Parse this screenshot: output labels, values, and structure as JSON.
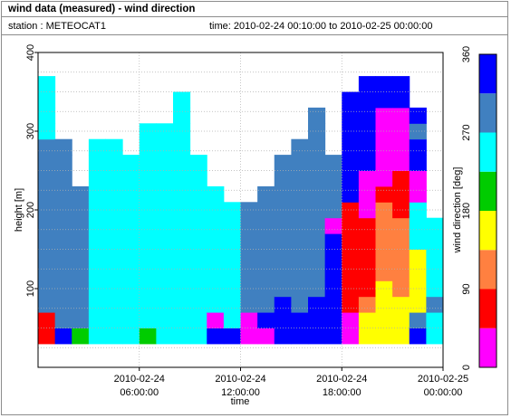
{
  "header": {
    "title": "wind data (measured) - wind direction",
    "station": "station : METEOCAT1",
    "time_range": "time: 2010-02-24 00:10:00 to 2010-02-25 00:00:00"
  },
  "chart_data": {
    "type": "heatmap",
    "title": "wind data (measured) - wind direction",
    "xlabel": "time",
    "ylabel": "height [m]",
    "colorbar_label": "wind direction [deg]",
    "xlim_hours": [
      0,
      24
    ],
    "ylim": [
      0,
      400
    ],
    "x_ticks": [
      {
        "hour": 6,
        "line1": "2010-02-24",
        "line2": "06:00:00"
      },
      {
        "hour": 12,
        "line1": "2010-02-24",
        "line2": "12:00:00"
      },
      {
        "hour": 18,
        "line1": "2010-02-24",
        "line2": "18:00:00"
      },
      {
        "hour": 24,
        "line1": "2010-02-25",
        "line2": "00:00:00"
      }
    ],
    "y_ticks": [
      100,
      200,
      300,
      400
    ],
    "colorbar_ticks": [
      0,
      90,
      180,
      270,
      360
    ],
    "colorbar_classes": [
      {
        "from": 0,
        "to": 45,
        "color": "#ff00ff"
      },
      {
        "from": 45,
        "to": 90,
        "color": "#ff0000"
      },
      {
        "from": 90,
        "to": 135,
        "color": "#ff8040"
      },
      {
        "from": 135,
        "to": 180,
        "color": "#ffff00"
      },
      {
        "from": 180,
        "to": 225,
        "color": "#00cc00"
      },
      {
        "from": 225,
        "to": 270,
        "color": "#00ffff"
      },
      {
        "from": 270,
        "to": 315,
        "color": "#4080c0"
      },
      {
        "from": 315,
        "to": 360,
        "color": "#0000ff"
      }
    ],
    "grid": true,
    "height_bins_m": [
      40,
      60,
      80,
      100,
      120,
      140,
      160,
      180,
      200,
      220,
      240,
      260,
      280,
      300,
      320,
      340,
      360
    ],
    "time_bins_hours": [
      0,
      1,
      2,
      3,
      4,
      5,
      6,
      7,
      8,
      9,
      10,
      11,
      12,
      13,
      14,
      15,
      16,
      17,
      18,
      19,
      20,
      21,
      22,
      23
    ],
    "values_deg": [
      [
        60,
        60,
        300,
        300,
        300,
        300,
        300,
        300,
        300,
        300,
        300,
        300,
        300,
        250,
        250,
        250,
        250
      ],
      [
        330,
        300,
        300,
        300,
        300,
        300,
        300,
        300,
        300,
        300,
        300,
        300,
        300,
        0,
        0,
        0,
        0
      ],
      [
        200,
        300,
        300,
        300,
        300,
        300,
        300,
        300,
        300,
        300,
        0,
        0,
        0,
        0,
        0,
        0,
        0
      ],
      [
        250,
        250,
        250,
        250,
        250,
        250,
        250,
        250,
        250,
        250,
        250,
        250,
        250,
        0,
        0,
        0,
        0
      ],
      [
        250,
        250,
        250,
        250,
        250,
        250,
        250,
        250,
        250,
        250,
        250,
        250,
        250,
        0,
        0,
        0,
        0
      ],
      [
        250,
        250,
        250,
        250,
        250,
        250,
        250,
        250,
        250,
        250,
        250,
        250,
        0,
        0,
        0,
        0,
        0
      ],
      [
        200,
        250,
        250,
        250,
        250,
        250,
        250,
        250,
        250,
        250,
        250,
        250,
        250,
        250,
        0,
        0,
        0
      ],
      [
        250,
        250,
        250,
        250,
        250,
        250,
        250,
        250,
        250,
        250,
        250,
        250,
        250,
        250,
        0,
        0,
        0
      ],
      [
        250,
        250,
        250,
        250,
        250,
        250,
        250,
        250,
        250,
        250,
        250,
        250,
        250,
        250,
        250,
        250,
        0
      ],
      [
        250,
        250,
        250,
        250,
        250,
        250,
        250,
        250,
        250,
        250,
        250,
        250,
        0,
        0,
        0,
        0,
        0
      ],
      [
        330,
        20,
        250,
        250,
        250,
        250,
        250,
        250,
        250,
        250,
        0,
        0,
        0,
        0,
        0,
        0,
        0
      ],
      [
        330,
        250,
        250,
        250,
        250,
        250,
        250,
        250,
        250,
        0,
        0,
        0,
        0,
        0,
        0,
        0,
        0
      ],
      [
        20,
        20,
        300,
        300,
        300,
        300,
        300,
        300,
        300,
        0,
        0,
        0,
        0,
        0,
        0,
        0,
        0
      ],
      [
        20,
        330,
        300,
        300,
        300,
        300,
        300,
        300,
        300,
        300,
        0,
        0,
        0,
        0,
        0,
        0,
        0
      ],
      [
        330,
        330,
        330,
        300,
        300,
        300,
        300,
        300,
        300,
        300,
        300,
        300,
        0,
        0,
        0,
        0,
        0
      ],
      [
        330,
        330,
        300,
        300,
        300,
        300,
        300,
        300,
        300,
        300,
        300,
        300,
        300,
        0,
        0,
        0,
        0
      ],
      [
        330,
        330,
        330,
        300,
        300,
        300,
        300,
        300,
        300,
        300,
        300,
        300,
        300,
        300,
        300,
        0,
        0
      ],
      [
        330,
        330,
        330,
        330,
        330,
        330,
        330,
        20,
        300,
        300,
        300,
        300,
        0,
        0,
        0,
        0,
        0
      ],
      [
        20,
        20,
        70,
        70,
        70,
        70,
        60,
        60,
        60,
        330,
        330,
        330,
        330,
        330,
        330,
        330,
        0
      ],
      [
        160,
        160,
        110,
        70,
        70,
        60,
        60,
        60,
        30,
        30,
        30,
        330,
        330,
        330,
        330,
        330,
        330
      ],
      [
        160,
        160,
        160,
        160,
        110,
        110,
        110,
        110,
        110,
        60,
        30,
        30,
        30,
        20,
        20,
        330,
        330
      ],
      [
        160,
        160,
        160,
        110,
        110,
        110,
        110,
        110,
        60,
        60,
        60,
        30,
        30,
        20,
        20,
        330,
        330
      ],
      [
        330,
        300,
        160,
        160,
        160,
        160,
        250,
        250,
        250,
        30,
        30,
        330,
        330,
        300,
        330,
        0,
        0
      ],
      [
        250,
        250,
        300,
        250,
        250,
        250,
        250,
        250,
        0,
        0,
        0,
        0,
        0,
        0,
        0,
        0,
        0
      ]
    ]
  }
}
